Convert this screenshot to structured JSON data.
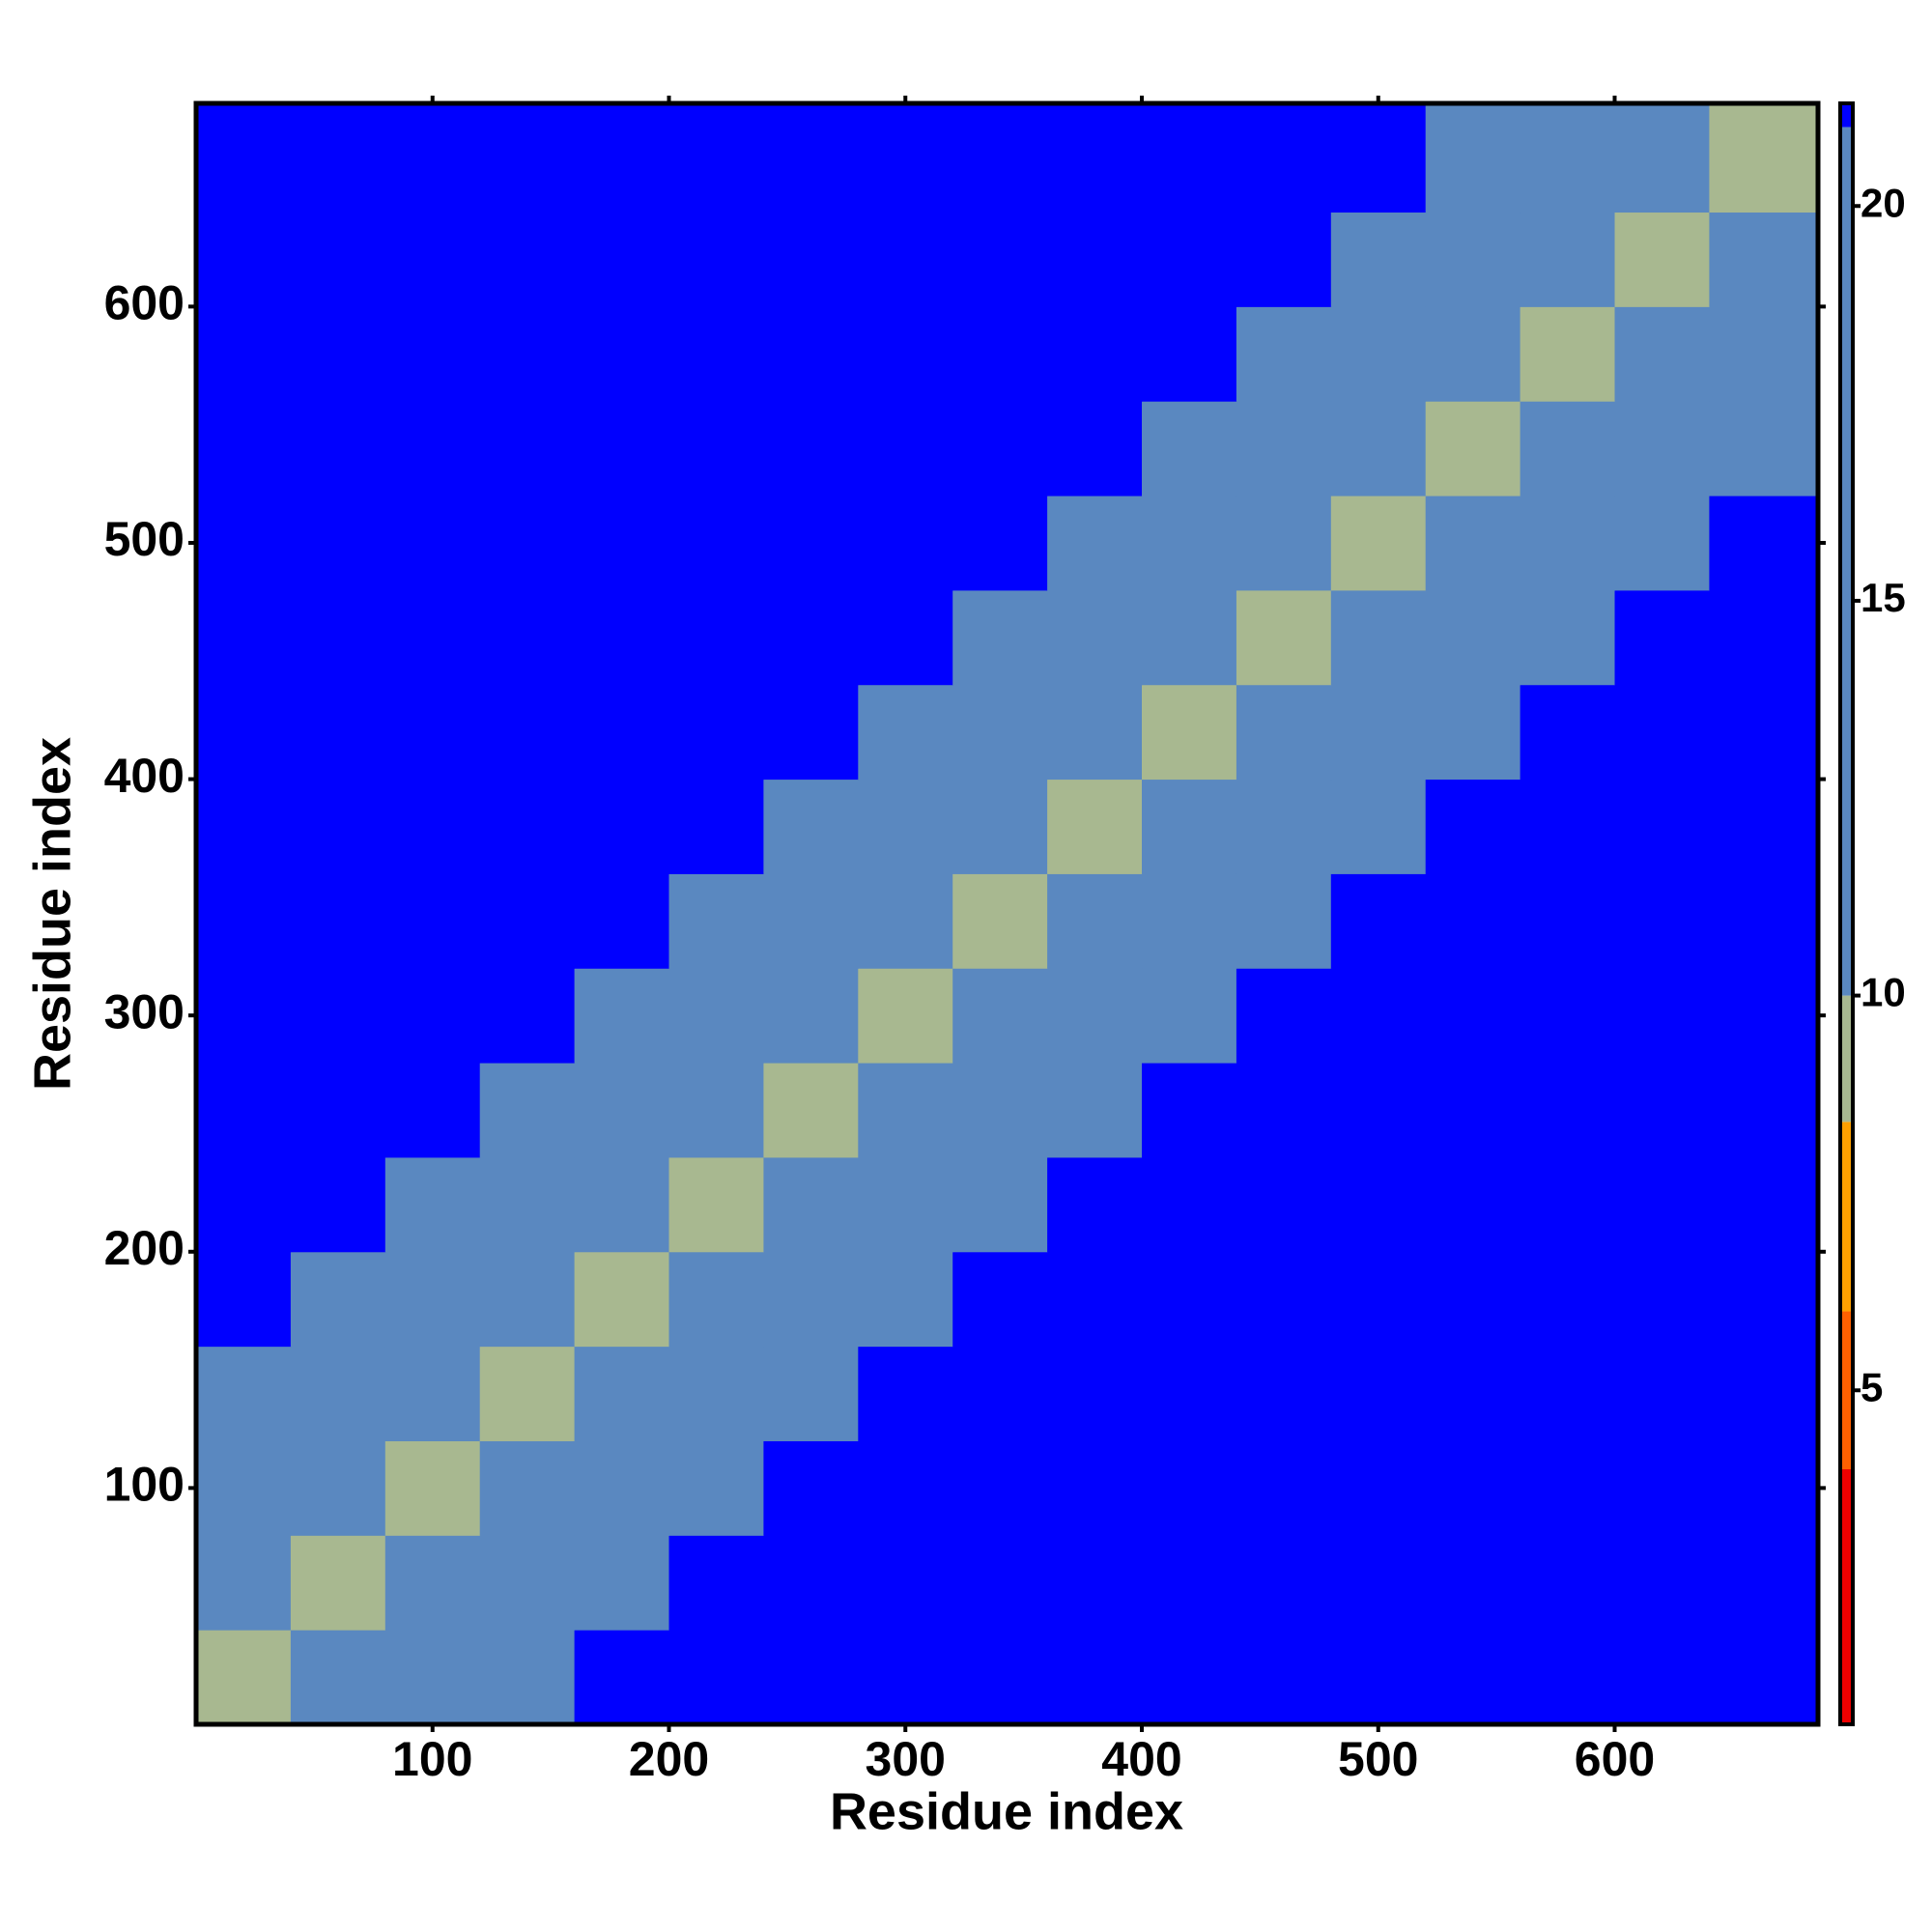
{
  "chart_data": {
    "type": "heatmap",
    "x_label": "Residue index",
    "y_label": "Residue index",
    "xlim": [
      0,
      686
    ],
    "ylim": [
      0,
      686
    ],
    "xticks": [
      100,
      200,
      300,
      400,
      500,
      600
    ],
    "yticks": [
      100,
      200,
      300,
      400,
      500,
      600
    ],
    "bins": [
      0,
      40,
      80,
      120,
      160,
      200,
      240,
      280,
      320,
      360,
      400,
      440,
      480,
      520,
      560,
      600,
      640,
      686
    ],
    "z": [
      [
        9,
        15,
        18,
        20,
        21.5,
        25,
        25,
        25,
        25,
        25,
        25,
        25,
        25,
        25,
        25,
        25,
        25
      ],
      [
        15,
        9,
        15,
        18,
        20,
        21.5,
        25,
        25,
        25,
        25,
        25,
        25,
        25,
        25,
        25,
        25,
        25
      ],
      [
        18,
        15,
        9,
        15,
        18,
        20,
        21.5,
        25,
        25,
        25,
        25,
        25,
        25,
        25,
        25,
        25,
        25
      ],
      [
        20,
        18,
        15,
        9,
        15,
        18,
        20,
        21.5,
        25,
        25,
        25,
        25,
        25,
        25,
        25,
        25,
        25
      ],
      [
        21.5,
        20,
        18,
        15,
        9,
        15,
        18,
        20,
        21.5,
        25,
        25,
        25,
        25,
        25,
        25,
        25,
        25
      ],
      [
        25,
        21.5,
        20,
        18,
        15,
        9,
        15,
        18,
        20,
        21.5,
        25,
        25,
        25,
        25,
        25,
        25,
        25
      ],
      [
        25,
        25,
        21.5,
        20,
        18,
        15,
        9,
        15,
        18,
        20,
        21.5,
        25,
        25,
        25,
        25,
        25,
        25
      ],
      [
        25,
        25,
        25,
        21.5,
        20,
        18,
        15,
        9,
        15,
        18,
        20,
        21.5,
        25,
        25,
        25,
        25,
        25
      ],
      [
        25,
        25,
        25,
        25,
        21.5,
        20,
        18,
        15,
        9,
        15,
        18,
        20,
        21.5,
        25,
        25,
        25,
        25
      ],
      [
        25,
        25,
        25,
        25,
        25,
        21.5,
        20,
        18,
        15,
        9,
        15,
        18,
        20,
        21.5,
        25,
        25,
        25
      ],
      [
        25,
        25,
        25,
        25,
        25,
        25,
        21.5,
        20,
        18,
        15,
        9,
        15,
        18,
        20,
        21.5,
        25,
        25
      ],
      [
        25,
        25,
        25,
        25,
        25,
        25,
        25,
        21.5,
        20,
        18,
        15,
        9,
        15,
        18,
        20,
        21.5,
        25
      ],
      [
        25,
        25,
        25,
        25,
        25,
        25,
        25,
        25,
        21.5,
        20,
        18,
        15,
        9,
        15,
        18,
        20,
        21.5
      ],
      [
        25,
        25,
        25,
        25,
        25,
        25,
        25,
        25,
        25,
        21.5,
        20,
        18,
        15,
        9,
        15,
        18,
        20
      ],
      [
        25,
        25,
        25,
        25,
        25,
        25,
        25,
        25,
        25,
        25,
        21.5,
        20,
        18,
        15,
        9,
        15,
        18
      ],
      [
        25,
        25,
        25,
        25,
        25,
        25,
        25,
        25,
        25,
        25,
        25,
        21.5,
        20,
        18,
        15,
        9,
        15
      ],
      [
        25,
        25,
        25,
        25,
        25,
        25,
        25,
        25,
        25,
        25,
        25,
        25,
        21.5,
        20,
        18,
        15,
        9
      ]
    ],
    "zlim": [
      0.77,
      21.3
    ],
    "zticks": [
      5,
      10,
      15,
      20
    ],
    "color_steps": [
      {
        "min": 0.77,
        "color": "#ee0000"
      },
      {
        "min": 4,
        "color": "#ff6000"
      },
      {
        "min": 6,
        "color": "#ffa000"
      },
      {
        "min": 8.4,
        "color": "#a8b890"
      },
      {
        "min": 10,
        "color": "#5a88c0"
      },
      {
        "min": 21,
        "color": "#0000ff"
      }
    ]
  }
}
